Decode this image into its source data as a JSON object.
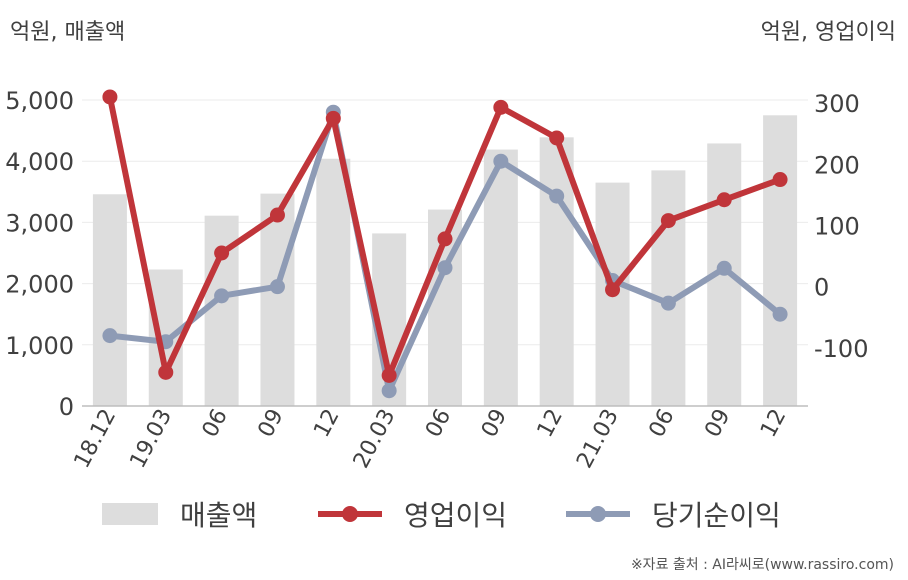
{
  "chart_data": {
    "type": "bar+line",
    "y_left_label": "억원, 매출액",
    "y_right_label": "억원, 영업이익",
    "categories": [
      "18.12",
      "19.03",
      "06",
      "09",
      "12",
      "20.03",
      "06",
      "09",
      "12",
      "21.03",
      "06",
      "09",
      "12"
    ],
    "y_left_ticks": [
      "0",
      "1,000",
      "2,000",
      "3,000",
      "4,000",
      "5,000"
    ],
    "y_right_ticks": [
      "-100",
      "0",
      "100",
      "200",
      "300"
    ],
    "y_left_range": [
      0,
      5000
    ],
    "y_right_range": [
      -195,
      305
    ],
    "series": [
      {
        "name": "매출액",
        "axis": "left",
        "kind": "bar",
        "color": "#dddddd",
        "values": [
          3460,
          2230,
          3110,
          3470,
          4040,
          2820,
          3210,
          4190,
          4390,
          3650,
          3850,
          4290,
          4750
        ]
      },
      {
        "name": "영업이익",
        "axis": "right",
        "kind": "line",
        "color": "#c0353a",
        "values": [
          310,
          -140,
          55,
          117,
          275,
          -145,
          78,
          293,
          243,
          -5,
          108,
          142,
          175
        ]
      },
      {
        "name": "당기순이익",
        "axis": "right",
        "kind": "line",
        "color": "#8e9bb5",
        "values": [
          -80,
          -90,
          -15,
          0,
          285,
          -170,
          31,
          205,
          148,
          10,
          -27,
          30,
          -45
        ]
      }
    ],
    "grid": true,
    "legend_position": "bottom"
  },
  "source": "※자료 출처 : AI라씨로(www.rassiro.com)"
}
